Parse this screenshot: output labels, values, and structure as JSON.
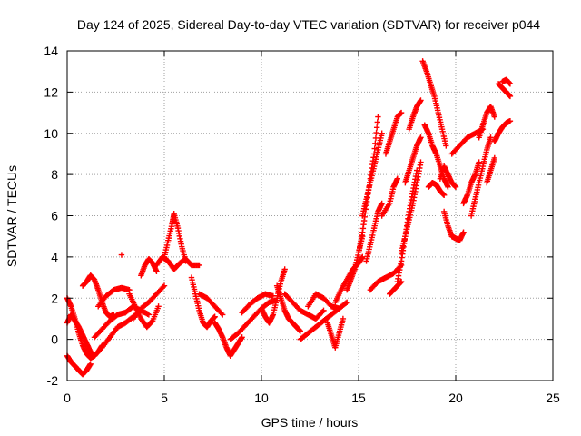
{
  "chart_data": {
    "type": "scatter",
    "title": "Day 124 of 2025, Sidereal Day-to-day VTEC variation (SDTVAR) for receiver p044",
    "xlabel": "GPS time / hours",
    "ylabel": "SDTVAR / TECUs",
    "xlim": [
      0,
      25
    ],
    "ylim": [
      -2,
      14
    ],
    "xticks": [
      "0",
      "5",
      "10",
      "15",
      "20",
      "25"
    ],
    "yticks": [
      "-2",
      "0",
      "2",
      "4",
      "6",
      "8",
      "10",
      "12",
      "14"
    ],
    "grid": true,
    "marker": "plus",
    "color": "#ff0000",
    "series": [
      {
        "x": [
          0.0,
          0.2,
          0.4,
          0.6,
          0.8,
          1.0,
          1.2
        ],
        "y": [
          -0.8,
          -1.1,
          -1.3,
          -1.5,
          -1.7,
          -1.5,
          -1.2
        ]
      },
      {
        "x": [
          0.0,
          0.2,
          0.4,
          0.6,
          0.8,
          1.0,
          1.2,
          1.4,
          1.6,
          1.8
        ],
        "y": [
          0.8,
          1.2,
          0.9,
          0.6,
          0.2,
          -0.2,
          -0.6,
          -0.8,
          -0.6,
          -0.3
        ]
      },
      {
        "x": [
          0.0,
          0.2,
          0.4,
          0.6,
          0.8,
          1.0,
          1.2,
          1.4
        ],
        "y": [
          2.0,
          1.6,
          1.0,
          0.3,
          -0.3,
          -0.7,
          -0.9,
          -0.8
        ]
      },
      {
        "x": [
          0.8,
          1.0,
          1.2,
          1.4,
          1.6,
          1.8,
          2.0,
          2.2,
          2.4
        ],
        "y": [
          2.6,
          2.8,
          3.1,
          2.9,
          2.4,
          1.8,
          1.3,
          1.1,
          1.2
        ]
      },
      {
        "x": [
          1.4,
          1.8,
          2.2,
          2.6,
          3.0,
          3.4,
          3.8
        ],
        "y": [
          0.1,
          0.5,
          0.9,
          1.2,
          1.3,
          1.6,
          1.4
        ]
      },
      {
        "x": [
          1.6,
          2.0,
          2.4,
          2.8,
          3.2
        ],
        "y": [
          1.6,
          2.1,
          2.4,
          2.5,
          2.4
        ]
      },
      {
        "x": [
          1.8,
          2.2,
          2.6,
          3.0,
          3.4,
          3.8,
          4.2
        ],
        "y": [
          -0.4,
          0.1,
          0.6,
          0.8,
          1.1,
          1.4,
          1.2
        ]
      },
      {
        "x": [
          2.8
        ],
        "y": [
          4.1
        ]
      },
      {
        "x": [
          3.2,
          3.5,
          3.8,
          4.1,
          4.4,
          4.7
        ],
        "y": [
          2.2,
          1.6,
          1.0,
          0.6,
          0.9,
          1.6
        ]
      },
      {
        "x": [
          3.4,
          3.8,
          4.2,
          4.6,
          5.0
        ],
        "y": [
          1.0,
          1.5,
          1.8,
          2.2,
          2.6
        ]
      },
      {
        "x": [
          3.8,
          4.0,
          4.2,
          4.4,
          4.6
        ],
        "y": [
          3.1,
          3.6,
          3.9,
          3.7,
          3.3
        ]
      },
      {
        "x": [
          4.6,
          4.9,
          5.2,
          5.5,
          5.8,
          6.1,
          6.4,
          6.8
        ],
        "y": [
          3.6,
          4.0,
          3.8,
          3.4,
          3.7,
          3.9,
          3.6,
          3.6
        ]
      },
      {
        "x": [
          5.0,
          5.2,
          5.4,
          5.5,
          5.7,
          5.9,
          6.1
        ],
        "y": [
          4.0,
          4.8,
          5.6,
          6.1,
          5.4,
          4.5,
          3.8
        ]
      },
      {
        "x": [
          6.4,
          6.6,
          6.8,
          7.0,
          7.2,
          7.4,
          7.6
        ],
        "y": [
          3.0,
          2.2,
          1.4,
          0.8,
          0.6,
          0.9,
          1.1
        ]
      },
      {
        "x": [
          6.8,
          7.2,
          7.6,
          8.0
        ],
        "y": [
          2.2,
          2.0,
          1.6,
          1.2
        ]
      },
      {
        "x": [
          7.6,
          7.8,
          8.0,
          8.2,
          8.4,
          8.6,
          8.8,
          9.0
        ],
        "y": [
          0.8,
          0.5,
          0.1,
          -0.4,
          -0.8,
          -0.5,
          -0.2,
          0.1
        ]
      },
      {
        "x": [
          8.4,
          8.8,
          9.2,
          9.6,
          10.0,
          10.4,
          10.8
        ],
        "y": [
          0.0,
          0.3,
          0.7,
          1.1,
          1.5,
          1.8,
          1.9
        ]
      },
      {
        "x": [
          9.0,
          9.4,
          9.8,
          10.2,
          10.6
        ],
        "y": [
          1.3,
          1.7,
          2.0,
          2.2,
          2.1
        ]
      },
      {
        "x": [
          10.0,
          10.2,
          10.4,
          10.6,
          10.8,
          11.0,
          11.2
        ],
        "y": [
          1.5,
          1.1,
          0.8,
          1.2,
          2.0,
          2.8,
          3.4
        ]
      },
      {
        "x": [
          10.8,
          11.0,
          11.2,
          11.4,
          11.6,
          11.8,
          12.0
        ],
        "y": [
          2.6,
          2.0,
          1.4,
          1.0,
          0.8,
          0.6,
          0.4
        ]
      },
      {
        "x": [
          11.2,
          11.6,
          12.0,
          12.4,
          12.8,
          13.2
        ],
        "y": [
          2.2,
          1.8,
          1.4,
          1.2,
          1.0,
          1.4
        ]
      },
      {
        "x": [
          12.0,
          12.4,
          12.8,
          13.2,
          13.6,
          14.0,
          14.4
        ],
        "y": [
          0.0,
          0.3,
          0.6,
          0.9,
          1.2,
          1.5,
          1.8
        ]
      },
      {
        "x": [
          12.4,
          12.8,
          13.2,
          13.6,
          14.0
        ],
        "y": [
          1.6,
          2.2,
          2.0,
          1.6,
          1.5
        ]
      },
      {
        "x": [
          13.4,
          13.6,
          13.8,
          14.0,
          14.2
        ],
        "y": [
          0.8,
          0.2,
          -0.4,
          0.3,
          1.0
        ]
      },
      {
        "x": [
          13.8,
          14.1,
          14.4,
          14.7,
          15.0,
          15.2
        ],
        "y": [
          1.8,
          2.4,
          2.9,
          3.4,
          3.7,
          4.0
        ]
      },
      {
        "x": [
          14.4,
          14.6,
          14.8,
          15.0,
          15.2
        ],
        "y": [
          2.4,
          2.9,
          3.4,
          4.2,
          5.0
        ]
      },
      {
        "x": [
          15.0,
          15.2,
          15.4,
          15.6,
          15.8,
          16.0
        ],
        "y": [
          4.2,
          5.2,
          6.5,
          7.8,
          9.0,
          10.8
        ]
      },
      {
        "x": [
          15.2,
          15.4,
          15.6,
          15.8,
          16.0,
          16.2
        ],
        "y": [
          6.0,
          6.8,
          7.6,
          8.4,
          9.2,
          10.0
        ]
      },
      {
        "x": [
          15.4,
          15.6,
          15.8,
          16.0,
          16.2
        ],
        "y": [
          3.8,
          4.6,
          5.4,
          6.2,
          6.6
        ]
      },
      {
        "x": [
          15.6,
          16.0,
          16.4,
          16.8,
          17.2
        ],
        "y": [
          2.4,
          2.8,
          3.0,
          3.2,
          3.6
        ]
      },
      {
        "x": [
          16.2,
          16.6,
          16.8,
          17.0
        ],
        "y": [
          6.0,
          6.6,
          7.4,
          7.8
        ]
      },
      {
        "x": [
          16.6,
          16.8,
          17.0,
          17.2
        ],
        "y": [
          2.2,
          2.4,
          2.6,
          2.8
        ]
      },
      {
        "x": [
          16.4,
          16.6,
          16.8,
          17.0,
          17.2
        ],
        "y": [
          9.0,
          9.6,
          10.2,
          10.8,
          11.0
        ]
      },
      {
        "x": [
          17.0,
          17.2,
          17.4,
          17.6,
          17.8,
          18.0
        ],
        "y": [
          2.8,
          3.8,
          5.0,
          6.2,
          7.2,
          8.2
        ]
      },
      {
        "x": [
          17.2,
          17.4,
          17.6,
          17.8,
          18.0,
          18.2
        ],
        "y": [
          4.2,
          5.0,
          5.8,
          6.6,
          7.6,
          8.6
        ]
      },
      {
        "x": [
          17.6,
          17.8,
          18.0,
          18.2
        ],
        "y": [
          10.2,
          10.8,
          11.3,
          11.6
        ]
      },
      {
        "x": [
          17.4,
          17.6,
          17.8,
          18.0,
          18.2
        ],
        "y": [
          7.6,
          8.2,
          8.8,
          9.4,
          9.8
        ]
      },
      {
        "x": [
          18.3,
          18.5,
          18.7,
          18.9,
          19.1,
          19.3,
          19.5
        ],
        "y": [
          13.5,
          13.0,
          12.4,
          11.8,
          11.0,
          10.2,
          9.4
        ]
      },
      {
        "x": [
          18.4,
          18.6,
          18.8,
          19.0,
          19.2,
          19.4,
          19.6
        ],
        "y": [
          10.4,
          10.0,
          9.4,
          9.0,
          8.4,
          7.8,
          7.4
        ]
      },
      {
        "x": [
          18.6,
          18.8,
          19.0,
          19.2,
          19.4
        ],
        "y": [
          7.4,
          7.6,
          7.5,
          7.2,
          7.0
        ]
      },
      {
        "x": [
          19.2,
          19.4,
          19.6,
          19.8,
          20.0
        ],
        "y": [
          7.8,
          8.4,
          8.0,
          7.6,
          7.4
        ]
      },
      {
        "x": [
          19.4,
          19.6,
          19.8,
          20.0,
          20.2,
          20.4
        ],
        "y": [
          6.2,
          5.5,
          5.0,
          4.9,
          4.8,
          5.2
        ]
      },
      {
        "x": [
          19.8,
          20.2,
          20.6,
          21.0,
          21.4
        ],
        "y": [
          9.0,
          9.4,
          9.8,
          10.0,
          10.2
        ]
      },
      {
        "x": [
          20.4,
          20.6,
          20.8,
          21.0,
          21.2
        ],
        "y": [
          6.6,
          7.0,
          7.6,
          8.0,
          8.6
        ]
      },
      {
        "x": [
          20.8,
          21.0,
          21.2,
          21.4,
          21.6,
          21.8
        ],
        "y": [
          6.0,
          6.8,
          7.6,
          8.4,
          9.2,
          9.8
        ]
      },
      {
        "x": [
          21.2,
          21.4,
          21.6,
          21.8,
          22.0
        ],
        "y": [
          9.8,
          10.4,
          11.0,
          11.3,
          10.8
        ]
      },
      {
        "x": [
          21.6,
          21.8,
          22.0
        ],
        "y": [
          7.6,
          8.2,
          8.8
        ]
      },
      {
        "x": [
          22.0,
          22.2,
          22.4,
          22.6,
          22.8
        ],
        "y": [
          9.6,
          10.0,
          10.3,
          10.5,
          10.6
        ]
      },
      {
        "x": [
          22.2,
          22.4,
          22.6,
          22.8
        ],
        "y": [
          12.4,
          12.2,
          12.0,
          11.8
        ]
      },
      {
        "x": [
          22.4,
          22.6,
          22.8
        ],
        "y": [
          12.5,
          12.6,
          12.4
        ]
      }
    ]
  }
}
